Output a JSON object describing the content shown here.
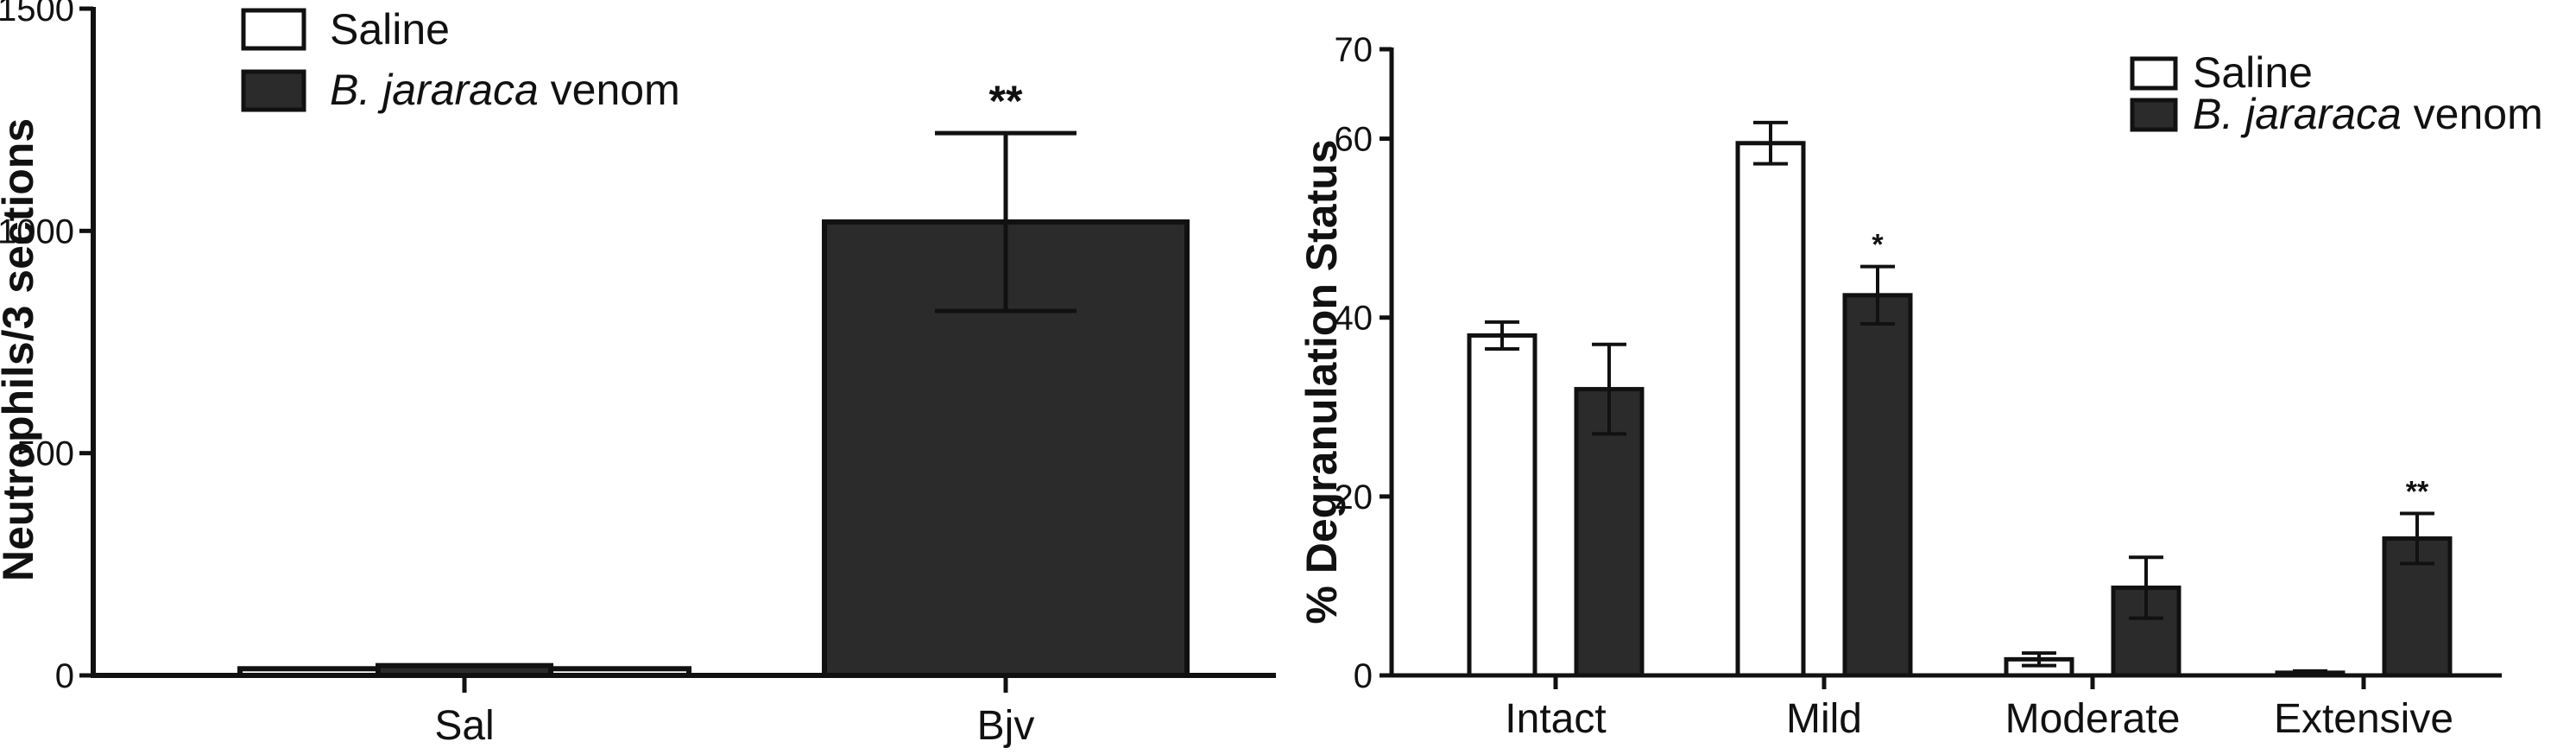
{
  "chart_data": [
    {
      "type": "bar",
      "title": "",
      "xlabel": "",
      "ylabel": "Neutrophils/3 sections",
      "ylim": [
        0,
        1500
      ],
      "yticks": [
        "0",
        "500",
        "1000",
        "1500"
      ],
      "categories": [
        "Sal",
        "Bjv"
      ],
      "series": [
        {
          "name": "Saline",
          "italic_part": "",
          "plain_part": "Saline",
          "color": "#ffffff",
          "values": [
            15,
            null
          ],
          "errors": [
            0,
            null
          ]
        },
        {
          "name": "B. jararaca venom",
          "italic_part": "B. jararaca",
          "plain_part": " venom",
          "color": "#2b2b2b",
          "values": [
            22,
            1020
          ],
          "errors": [
            0,
            200
          ]
        }
      ],
      "overlay_note": "Saline drawn wide at Sal; venom bar sits inside it at Sal",
      "significance": [
        {
          "category": "Bjv",
          "label": "**"
        }
      ],
      "legend": [
        "Saline",
        "B. jararaca venom"
      ],
      "legend_position": "top-left"
    },
    {
      "type": "bar",
      "title": "",
      "xlabel": "",
      "ylabel": "% Degranulation Status",
      "ylim": [
        0,
        70
      ],
      "yticks": [
        "0",
        "20",
        "40",
        "60",
        "70"
      ],
      "categories": [
        "Intact",
        "Mild",
        "Moderate",
        "Extensive"
      ],
      "series": [
        {
          "name": "Saline",
          "italic_part": "",
          "plain_part": "Saline",
          "color": "#ffffff",
          "values": [
            38,
            59.5,
            1.8,
            0.3
          ],
          "errors": [
            1.5,
            2.3,
            0.7,
            0.2
          ]
        },
        {
          "name": "B. jararaca venom",
          "italic_part": "B. jararaca",
          "plain_part": " venom",
          "color": "#2b2b2b",
          "values": [
            32,
            42.5,
            9.8,
            15.3
          ],
          "errors": [
            5,
            3.2,
            3.4,
            2.8
          ]
        }
      ],
      "significance": [
        {
          "category": "Mild",
          "series": 1,
          "label": "*"
        },
        {
          "category": "Extensive",
          "series": 1,
          "label": "**"
        }
      ],
      "legend": [
        "Saline",
        "B. jararaca venom"
      ],
      "legend_position": "top-right"
    }
  ]
}
